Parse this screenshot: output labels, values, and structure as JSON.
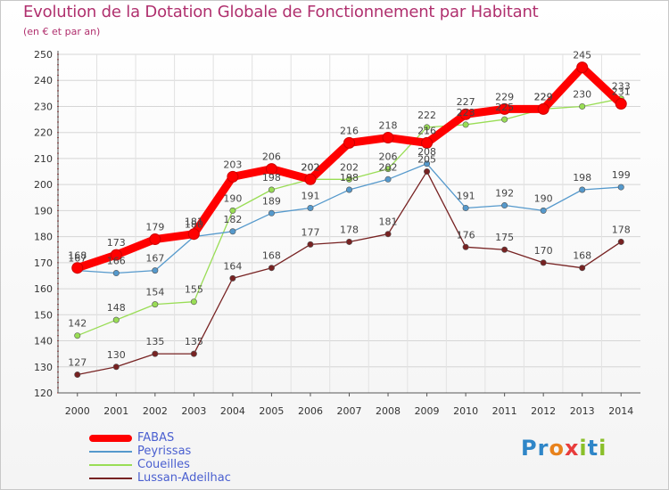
{
  "chart_data": {
    "type": "line",
    "title": "Evolution de la Dotation Globale de Fonctionnement par Habitant",
    "subtitle": "(en € et par an)",
    "xlabel": "",
    "ylabel": "",
    "ylim": [
      120,
      250
    ],
    "yticks": [
      120,
      130,
      140,
      150,
      160,
      170,
      180,
      190,
      200,
      210,
      220,
      230,
      240,
      250
    ],
    "categories": [
      "2000",
      "2001",
      "2002",
      "2003",
      "2004",
      "2005",
      "2006",
      "2007",
      "2008",
      "2009",
      "2010",
      "2011",
      "2012",
      "2013",
      "2014"
    ],
    "grid": true,
    "series": [
      {
        "name": "FABAS",
        "color": "#ff0000",
        "values": [
          168,
          173,
          179,
          181,
          203,
          206,
          202,
          216,
          218,
          216,
          227,
          229,
          229,
          245,
          231
        ]
      },
      {
        "name": "Peyrissas",
        "color": "#5599cc",
        "values": [
          167,
          166,
          167,
          180,
          182,
          189,
          191,
          198,
          202,
          208,
          191,
          192,
          190,
          198,
          199
        ]
      },
      {
        "name": "Coueilles",
        "color": "#99dd55",
        "values": [
          142,
          148,
          154,
          155,
          190,
          198,
          202,
          202,
          206,
          222,
          223,
          225,
          229,
          230,
          233
        ]
      },
      {
        "name": "Lussan-Adeilhac",
        "color": "#772222",
        "values": [
          127,
          130,
          135,
          135,
          164,
          168,
          177,
          178,
          181,
          205,
          176,
          175,
          170,
          168,
          178
        ]
      }
    ]
  },
  "logo": {
    "text": "Proxiti",
    "letter_colors": [
      "#2f86c8",
      "#2f86c8",
      "#e8821c",
      "#e83c3c",
      "#8abf2a",
      "#2f86c8",
      "#8abf2a"
    ]
  }
}
